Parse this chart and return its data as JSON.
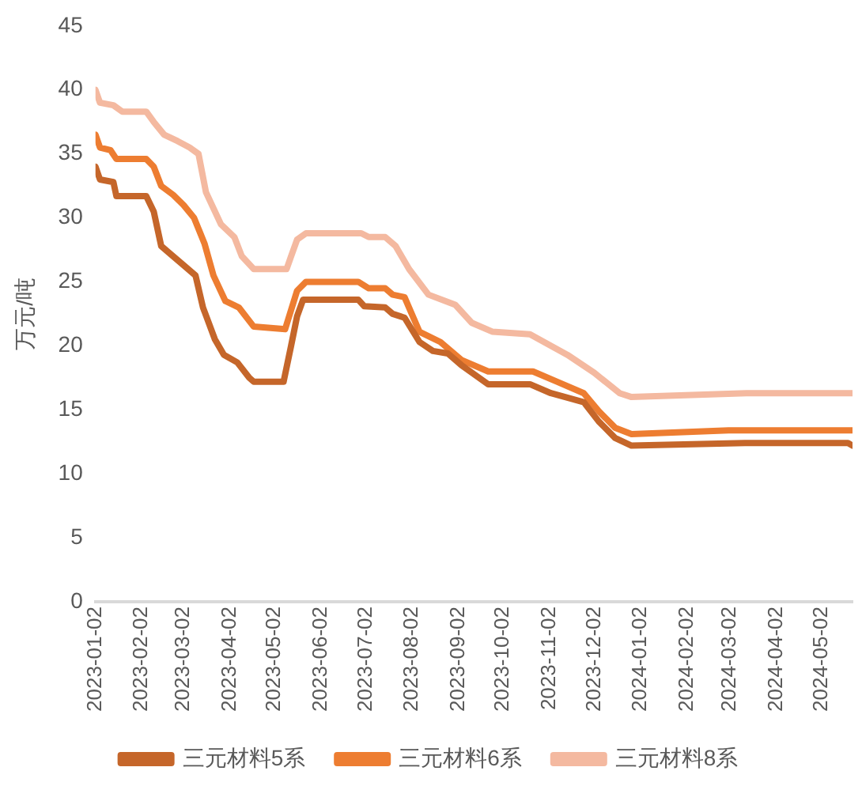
{
  "chart_data": {
    "type": "line",
    "ylabel": "万元/吨",
    "xlim": [
      "2023-01-02",
      "2024-05-23"
    ],
    "xticks": [
      "2023-01-02",
      "2023-02-02",
      "2023-03-02",
      "2023-04-02",
      "2023-05-02",
      "2023-06-02",
      "2023-07-02",
      "2023-08-02",
      "2023-09-02",
      "2023-10-02",
      "2023-11-02",
      "2023-12-02",
      "2024-01-02",
      "2024-02-02",
      "2024-03-02",
      "2024-04-02",
      "2024-05-02"
    ],
    "ylim": [
      0,
      45
    ],
    "yticks": [
      0,
      5,
      10,
      15,
      20,
      25,
      30,
      35,
      40,
      45
    ],
    "grid": false,
    "legend": "bottom",
    "marker": "none",
    "line_style": "solid",
    "series": [
      {
        "name": "三元材料5系",
        "color": "#c5662a",
        "x": [
          "2023-01-02",
          "2023-01-05",
          "2023-01-14",
          "2023-01-16",
          "2023-02-05",
          "2023-02-10",
          "2023-02-15",
          "2023-02-21",
          "2023-03-02",
          "2023-03-10",
          "2023-03-15",
          "2023-03-23",
          "2023-03-29",
          "2023-04-07",
          "2023-04-15",
          "2023-04-18",
          "2023-05-08",
          "2023-05-13",
          "2023-05-17",
          "2023-05-21",
          "2023-06-27",
          "2023-07-01",
          "2023-07-15",
          "2023-07-20",
          "2023-07-28",
          "2023-08-07",
          "2023-08-16",
          "2023-08-26",
          "2023-09-04",
          "2023-09-22",
          "2023-10-20",
          "2023-11-03",
          "2023-11-25",
          "2023-12-05",
          "2023-12-16",
          "2023-12-27",
          "2024-03-12",
          "2024-05-20",
          "2024-05-23"
        ],
        "values": [
          34,
          33,
          32.8,
          31.7,
          31.7,
          30.5,
          27.8,
          27.2,
          26.3,
          25.5,
          23,
          20.5,
          19.3,
          18.7,
          17.5,
          17.2,
          17.2,
          20,
          22.3,
          23.6,
          23.6,
          23.1,
          23,
          22.5,
          22.2,
          20.3,
          19.6,
          19.4,
          18.5,
          17,
          17,
          16.3,
          15.6,
          14.1,
          12.8,
          12.2,
          12.4,
          12.4,
          12.2
        ]
      },
      {
        "name": "三元材料6系",
        "color": "#ed7d31",
        "x": [
          "2023-01-02",
          "2023-01-05",
          "2023-01-12",
          "2023-01-16",
          "2023-02-05",
          "2023-02-10",
          "2023-02-15",
          "2023-02-23",
          "2023-03-02",
          "2023-03-09",
          "2023-03-16",
          "2023-03-22",
          "2023-03-30",
          "2023-04-08",
          "2023-04-18",
          "2023-05-09",
          "2023-05-17",
          "2023-05-23",
          "2023-06-27",
          "2023-07-04",
          "2023-07-15",
          "2023-07-20",
          "2023-07-28",
          "2023-08-07",
          "2023-08-21",
          "2023-09-04",
          "2023-09-22",
          "2023-10-22",
          "2023-11-07",
          "2023-11-25",
          "2023-12-05",
          "2023-12-16",
          "2023-12-27",
          "2024-03-01",
          "2024-05-23"
        ],
        "values": [
          36.5,
          35.5,
          35.3,
          34.6,
          34.6,
          34,
          32.5,
          31.8,
          31,
          30,
          28,
          25.5,
          23.5,
          23,
          21.5,
          21.3,
          24.3,
          25,
          25,
          24.5,
          24.5,
          24,
          23.8,
          21.1,
          20.3,
          18.9,
          18,
          18,
          17.2,
          16.3,
          14.9,
          13.6,
          13.1,
          13.4,
          13.4
        ]
      },
      {
        "name": "三元材料8系",
        "color": "#f4b9a0",
        "x": [
          "2023-01-02",
          "2023-01-05",
          "2023-01-14",
          "2023-01-20",
          "2023-02-05",
          "2023-02-10",
          "2023-02-17",
          "2023-02-26",
          "2023-03-06",
          "2023-03-12",
          "2023-03-17",
          "2023-03-27",
          "2023-04-05",
          "2023-04-10",
          "2023-04-18",
          "2023-05-10",
          "2023-05-13",
          "2023-05-17",
          "2023-05-23",
          "2023-06-29",
          "2023-07-04",
          "2023-07-15",
          "2023-07-22",
          "2023-07-31",
          "2023-08-13",
          "2023-08-31",
          "2023-09-11",
          "2023-09-25",
          "2023-10-20",
          "2023-11-14",
          "2023-12-02",
          "2023-12-19",
          "2023-12-27",
          "2024-03-13",
          "2024-05-23"
        ],
        "values": [
          40,
          39,
          38.8,
          38.3,
          38.3,
          37.5,
          36.5,
          36,
          35.5,
          35,
          32,
          29.5,
          28.5,
          27,
          26,
          26,
          27,
          28.3,
          28.8,
          28.8,
          28.5,
          28.5,
          27.8,
          26,
          24,
          23.2,
          21.8,
          21.1,
          20.9,
          19.3,
          17.9,
          16.3,
          16,
          16.3,
          16.3
        ]
      }
    ]
  }
}
